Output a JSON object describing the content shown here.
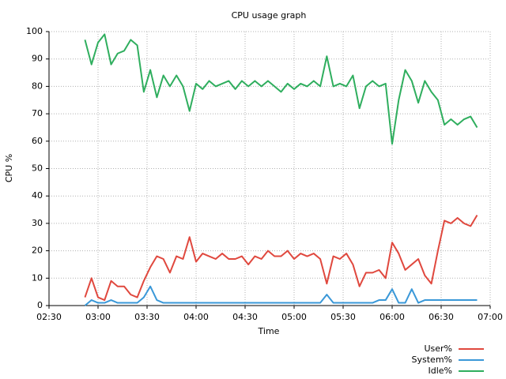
{
  "chart_data": {
    "type": "line",
    "title": "CPU usage graph",
    "x_label": "Time",
    "y_label": "CPU %",
    "x": [
      "02:52",
      "02:56",
      "03:00",
      "03:04",
      "03:08",
      "03:12",
      "03:16",
      "03:20",
      "03:24",
      "03:28",
      "03:32",
      "03:36",
      "03:40",
      "03:44",
      "03:48",
      "03:52",
      "03:56",
      "04:00",
      "04:04",
      "04:08",
      "04:12",
      "04:16",
      "04:20",
      "04:24",
      "04:28",
      "04:32",
      "04:36",
      "04:40",
      "04:44",
      "04:48",
      "04:52",
      "04:56",
      "05:00",
      "05:04",
      "05:08",
      "05:12",
      "05:16",
      "05:20",
      "05:24",
      "05:28",
      "05:32",
      "05:36",
      "05:40",
      "05:44",
      "05:48",
      "05:52",
      "05:56",
      "06:00",
      "06:04",
      "06:08",
      "06:12",
      "06:16",
      "06:20",
      "06:24",
      "06:28",
      "06:32",
      "06:36",
      "06:40",
      "06:44",
      "06:48",
      "06:52"
    ],
    "series": [
      {
        "name": "User%",
        "color": "#e0483e",
        "values": [
          3,
          10,
          3,
          2,
          9,
          7,
          7,
          4,
          3,
          9,
          14,
          18,
          17,
          12,
          18,
          17,
          25,
          16,
          19,
          18,
          17,
          19,
          17,
          17,
          18,
          15,
          18,
          17,
          20,
          18,
          18,
          20,
          17,
          19,
          18,
          19,
          17,
          8,
          18,
          17,
          19,
          15,
          7,
          12,
          12,
          13,
          10,
          23,
          19,
          13,
          15,
          17,
          11,
          8,
          20,
          31,
          30,
          32,
          30,
          29,
          33
        ]
      },
      {
        "name": "System%",
        "color": "#3a98d8",
        "values": [
          0,
          2,
          1,
          1,
          2,
          1,
          1,
          1,
          1,
          3,
          7,
          2,
          1,
          1,
          1,
          1,
          1,
          1,
          1,
          1,
          1,
          1,
          1,
          1,
          1,
          1,
          1,
          1,
          1,
          1,
          1,
          1,
          1,
          1,
          1,
          1,
          1,
          4,
          1,
          1,
          1,
          1,
          1,
          1,
          1,
          2,
          2,
          6,
          1,
          1,
          6,
          1,
          2,
          2,
          2,
          2,
          2,
          2,
          2,
          2,
          2
        ]
      },
      {
        "name": "Idle%",
        "color": "#2fae5e",
        "values": [
          97,
          88,
          96,
          99,
          88,
          92,
          93,
          97,
          95,
          78,
          86,
          76,
          84,
          80,
          84,
          80,
          71,
          81,
          79,
          82,
          80,
          81,
          82,
          79,
          82,
          80,
          82,
          80,
          82,
          80,
          78,
          81,
          79,
          81,
          80,
          82,
          80,
          91,
          80,
          81,
          80,
          84,
          72,
          80,
          82,
          80,
          81,
          59,
          75,
          86,
          82,
          74,
          82,
          78,
          75,
          66,
          68,
          66,
          68,
          69,
          65
        ]
      }
    ],
    "xlim": [
      "02:30",
      "07:00"
    ],
    "xticks": [
      "02:30",
      "03:00",
      "03:30",
      "04:00",
      "04:30",
      "05:00",
      "05:30",
      "06:00",
      "06:30",
      "07:00"
    ],
    "ylim": [
      0,
      100
    ],
    "yticks": [
      0,
      10,
      20,
      30,
      40,
      50,
      60,
      70,
      80,
      90,
      100
    ],
    "grid": true,
    "legend": "lower right"
  }
}
